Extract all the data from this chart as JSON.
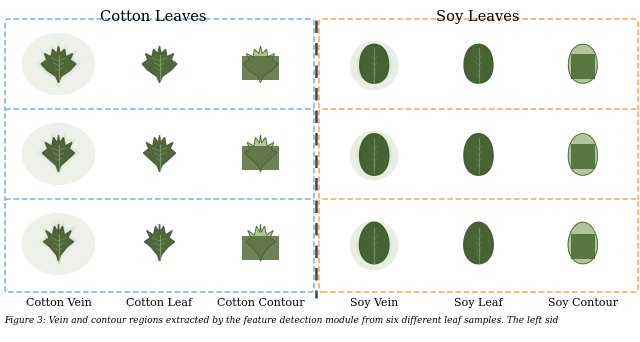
{
  "title_left": "Cotton Leaves",
  "title_right": "Soy Leaves",
  "col_labels_left": [
    "Cotton Vein",
    "Cotton Leaf",
    "Cotton Contour"
  ],
  "col_labels_right": [
    "Soy Vein",
    "Soy Leaf",
    "Soy Contour"
  ],
  "left_border_color": "#6baed6",
  "right_border_color": "#f0a050",
  "divider_color": "#444444",
  "title_fontsize": 10.5,
  "label_fontsize": 8,
  "caption_text": "Figure 3: Vein and contour regions extracted by the feature detection module from six different leaf samples. The left sid",
  "caption_fontsize": 6.5,
  "bg_color": "#ffffff",
  "leaf_dark": "#4a5e35",
  "leaf_mid": "#556b3a",
  "leaf_light": "#6a7e50",
  "leaf_vein": "#8aaa70",
  "blur_color": "#b8c8a8",
  "soy_dark": "#3e5c2a",
  "soy_mid": "#4a6a30",
  "soy_vein": "#7a9a60",
  "contour_color": "#aabf90"
}
